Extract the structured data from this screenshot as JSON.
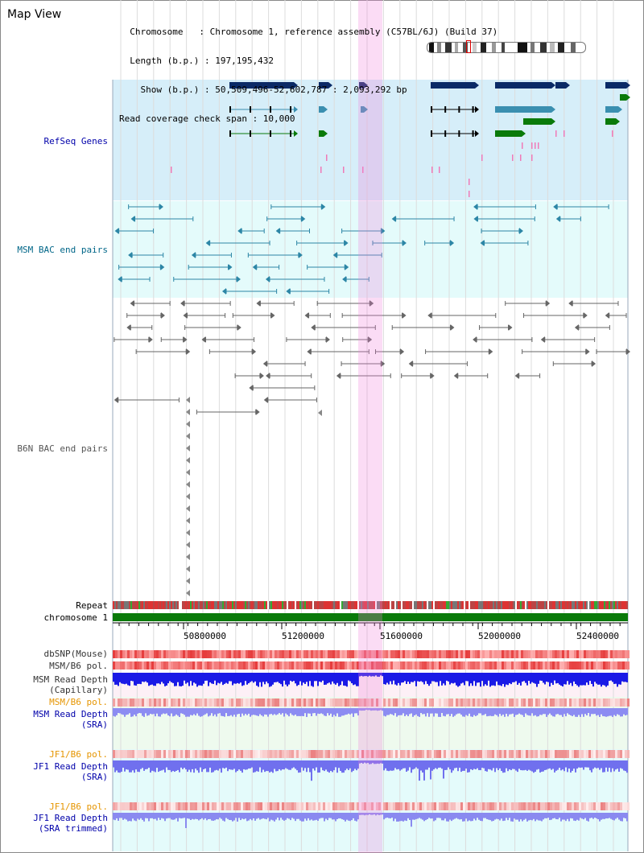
{
  "header": {
    "title": "Map View",
    "info_lines": [
      "  Chromosome   : Chromosome 1, reference assembly (C57BL/6J) (Build 37)",
      "  Length (b.p.) : 197,195,432",
      "    Show (b.p.) : 50,509,496-52,602,787 : 2,093,292 bp",
      "Read coverage check span : 10,000"
    ]
  },
  "tracks": {
    "refseq": "RefSeq Genes",
    "msm_bac": "MSM BAC end pairs",
    "b6n_bac": "B6N BAC end pairs",
    "repeat": "Repeat",
    "chromosome": "chromosome 1",
    "dbsnp": "dbSNP(Mouse)",
    "msm_b6_pol": "MSM/B6 pol.",
    "msm_read_depth_cap_1": "MSM Read Depth",
    "msm_read_depth_cap_2": "(Capillary)",
    "msm_b6_pol_2": "MSM/B6 pol.",
    "msm_read_depth_sra_1": "MSM Read Depth",
    "msm_read_depth_sra_2": "(SRA)",
    "jf1_b6_pol": "JF1/B6 pol.",
    "jf1_read_depth_1": "JF1 Read Depth",
    "jf1_read_depth_2": "(SRA)",
    "jf1_b6_pol_2": "JF1/B6 pol.",
    "jf1_read_depth_trim_1": "JF1 Read Depth",
    "jf1_read_depth_trim_2": "(SRA trimmed)"
  },
  "axis": {
    "ticks": [
      "50800000",
      "51200000",
      "51600000",
      "52000000",
      "52400000"
    ]
  },
  "colors": {
    "refseq_bg": "#d6eef9",
    "bac_bg": "#e0fafa",
    "refseq_blue": "#0a2a66",
    "refseq_teal": "#3a8fb0",
    "refseq_green": "#0a7a0a",
    "highlight": "#f6c6ee",
    "label_blue": "#0000aa",
    "label_teal": "#006688",
    "label_orange": "#e69500"
  }
}
